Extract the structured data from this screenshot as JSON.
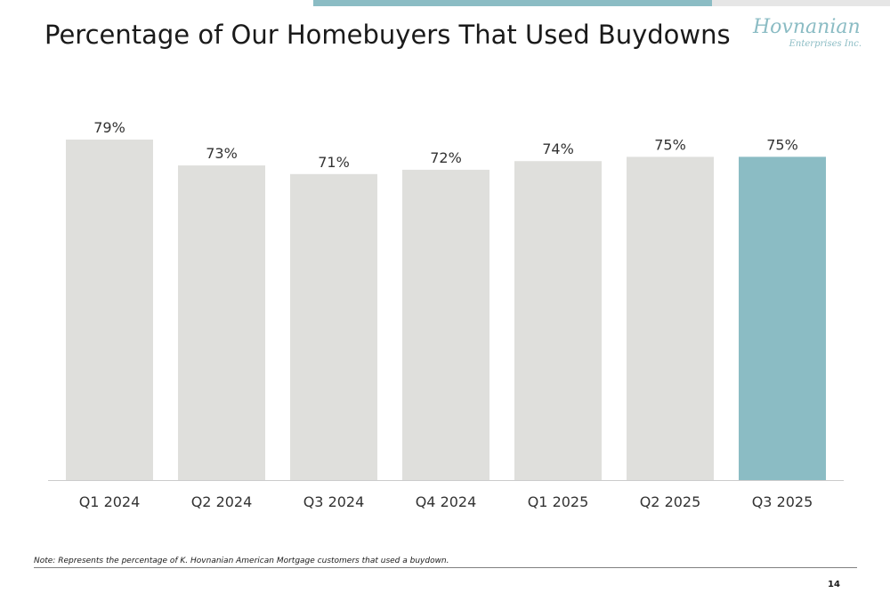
{
  "header": {
    "title": "Percentage of Our Homebuyers That Used Buydowns"
  },
  "logo": {
    "name": "Hovnanian",
    "subtitle": "Enterprises Inc."
  },
  "colors": {
    "accent": "#8bbcc4",
    "bar": "#dfdfdc",
    "highlight_bar": "#8bbcc4",
    "axis": "#cccccc"
  },
  "chart_data": {
    "type": "bar",
    "categories": [
      "Q1 2024",
      "Q2 2024",
      "Q3 2024",
      "Q4 2024",
      "Q1 2025",
      "Q2 2025",
      "Q3 2025"
    ],
    "values": [
      79,
      73,
      71,
      72,
      74,
      75,
      75
    ],
    "data_labels": [
      "79%",
      "73%",
      "71%",
      "72%",
      "74%",
      "75%",
      "75%"
    ],
    "highlight_index": 6,
    "ylim": [
      0,
      79
    ],
    "grid": false,
    "legend": "none"
  },
  "footer": {
    "note": "Note: Represents the percentage of K. Hovnanian American Mortgage customers that used a buydown.",
    "page_number": "14"
  }
}
